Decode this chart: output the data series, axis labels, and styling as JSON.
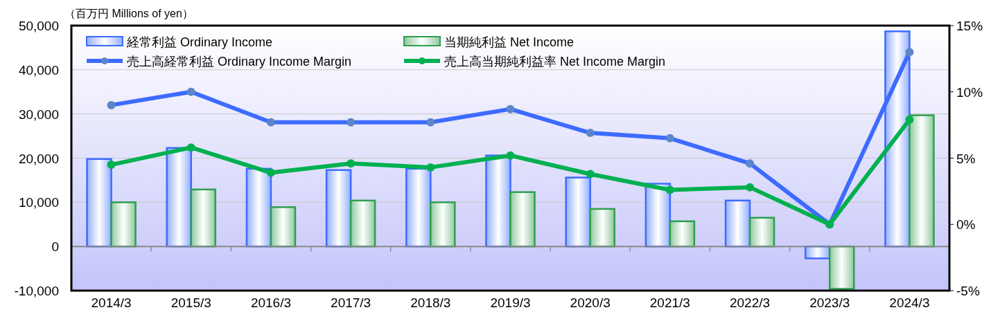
{
  "chart_data": {
    "type": "bar",
    "ylabel": "（百万円  Millions of yen）",
    "categories": [
      "2014/3",
      "2015/3",
      "2016/3",
      "2017/3",
      "2018/3",
      "2019/3",
      "2020/3",
      "2021/3",
      "2022/3",
      "2023/3",
      "2024/3"
    ],
    "series": [
      {
        "name": "経常利益 Ordinary Income",
        "color": "#3d6bff",
        "values": [
          19800,
          22300,
          17600,
          17300,
          17600,
          20600,
          15600,
          14200,
          10400,
          -2700,
          48700
        ]
      },
      {
        "name": "当期純利益 Net Income",
        "color": "#2f9e4f",
        "values": [
          10000,
          12900,
          8900,
          10400,
          10000,
          12300,
          8500,
          5700,
          6500,
          -9600,
          29700
        ]
      },
      {
        "name": "売上高経常利益 Ordinary Income Margin",
        "type": "line",
        "axis": "y2",
        "color": "#3d6bff",
        "values": [
          9.0,
          10.0,
          7.7,
          7.7,
          7.7,
          8.7,
          6.9,
          6.5,
          4.6,
          0.0,
          13.0
        ]
      },
      {
        "name": "売上高当期純利益率 Net Income Margin",
        "type": "line",
        "axis": "y2",
        "color": "#00b050",
        "values": [
          4.5,
          5.8,
          3.9,
          4.6,
          4.3,
          5.2,
          3.8,
          2.6,
          2.8,
          0.0,
          7.9
        ]
      }
    ],
    "ylim": [
      -10000,
      50000
    ],
    "yticks": [
      {
        "value": -10000,
        "label": "-10,000"
      },
      {
        "value": 0,
        "label": "0"
      },
      {
        "value": 10000,
        "label": "10,000"
      },
      {
        "value": 20000,
        "label": "20,000"
      },
      {
        "value": 30000,
        "label": "30,000"
      },
      {
        "value": 40000,
        "label": "40,000"
      },
      {
        "value": 50000,
        "label": "50,000"
      }
    ],
    "y2lim": [
      -5,
      15
    ],
    "y2ticks": [
      {
        "value": -5,
        "label": "-5%"
      },
      {
        "value": 0,
        "label": "0%"
      },
      {
        "value": 5,
        "label": "5%"
      },
      {
        "value": 10,
        "label": "10%"
      },
      {
        "value": 15,
        "label": "15%"
      }
    ],
    "grid": "y",
    "legend": "top left",
    "marker": "circle"
  }
}
